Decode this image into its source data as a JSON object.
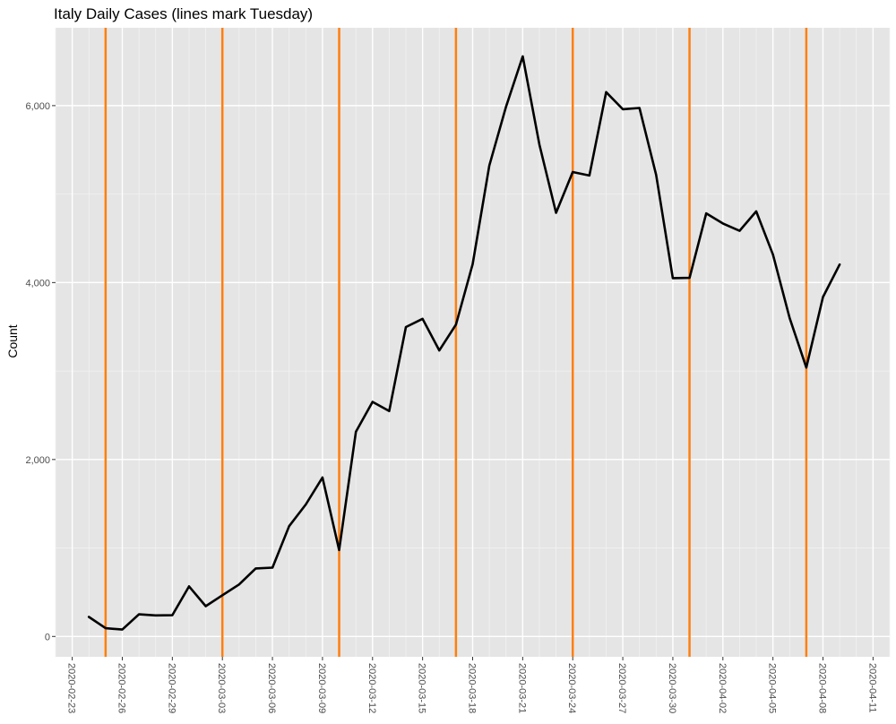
{
  "chart_data": {
    "type": "line",
    "title": "Italy Daily Cases (lines mark Tuesday)",
    "xlabel": "",
    "ylabel": "Count",
    "x_type": "date",
    "xlim": [
      "2020-02-22",
      "2020-04-12"
    ],
    "ylim": [
      -230,
      6880
    ],
    "grid": true,
    "y_ticks": [
      0,
      2000,
      4000,
      6000
    ],
    "y_tick_labels": [
      "0",
      "2,000",
      "4,000",
      "6,000"
    ],
    "x_ticks": [
      "2020-02-23",
      "2020-02-26",
      "2020-02-29",
      "2020-03-03",
      "2020-03-06",
      "2020-03-09",
      "2020-03-12",
      "2020-03-15",
      "2020-03-18",
      "2020-03-21",
      "2020-03-24",
      "2020-03-27",
      "2020-03-30",
      "2020-04-02",
      "2020-04-05",
      "2020-04-08",
      "2020-04-11"
    ],
    "x_tick_labels": [
      "2020-02-23",
      "2020-02-26",
      "2020-02-29",
      "2020-03-03",
      "2020-03-06",
      "2020-03-09",
      "2020-03-12",
      "2020-03-15",
      "2020-03-18",
      "2020-03-21",
      "2020-03-24",
      "2020-03-27",
      "2020-03-30",
      "2020-04-02",
      "2020-04-05",
      "2020-04-08",
      "2020-04-11"
    ],
    "x_tick_label_rotation": "vertical",
    "series": [
      {
        "color": "#000000",
        "x": [
          "2020-02-24",
          "2020-02-25",
          "2020-02-26",
          "2020-02-27",
          "2020-02-28",
          "2020-02-29",
          "2020-03-01",
          "2020-03-02",
          "2020-03-03",
          "2020-03-04",
          "2020-03-05",
          "2020-03-06",
          "2020-03-07",
          "2020-03-08",
          "2020-03-09",
          "2020-03-10",
          "2020-03-11",
          "2020-03-12",
          "2020-03-13",
          "2020-03-14",
          "2020-03-15",
          "2020-03-16",
          "2020-03-17",
          "2020-03-18",
          "2020-03-19",
          "2020-03-20",
          "2020-03-21",
          "2020-03-22",
          "2020-03-23",
          "2020-03-24",
          "2020-03-25",
          "2020-03-26",
          "2020-03-27",
          "2020-03-28",
          "2020-03-29",
          "2020-03-30",
          "2020-03-31",
          "2020-04-01",
          "2020-04-02",
          "2020-04-03",
          "2020-04-04",
          "2020-04-05",
          "2020-04-06",
          "2020-04-07",
          "2020-04-08",
          "2020-04-09"
        ],
        "values": [
          221,
          93,
          78,
          250,
          238,
          240,
          566,
          342,
          466,
          587,
          769,
          778,
          1247,
          1492,
          1797,
          977,
          2313,
          2651,
          2547,
          3497,
          3590,
          3233,
          3526,
          4207,
          5322,
          5986,
          6557,
          5560,
          4789,
          5249,
          5210,
          6153,
          5959,
          5974,
          5217,
          4050,
          4053,
          4782,
          4668,
          4585,
          4805,
          4316,
          3599,
          3039,
          3836,
          4204
        ]
      }
    ],
    "reference_lines": {
      "orientation": "vertical",
      "color": "#ff7f0e",
      "x": [
        "2020-02-25",
        "2020-03-03",
        "2020-03-10",
        "2020-03-17",
        "2020-03-24",
        "2020-03-31",
        "2020-04-07"
      ]
    },
    "colors": {
      "panel_background": "#e5e5e5",
      "grid_major": "#ffffff",
      "grid_minor": "#f2f2f2",
      "tick_label": "#4d4d4d"
    }
  }
}
